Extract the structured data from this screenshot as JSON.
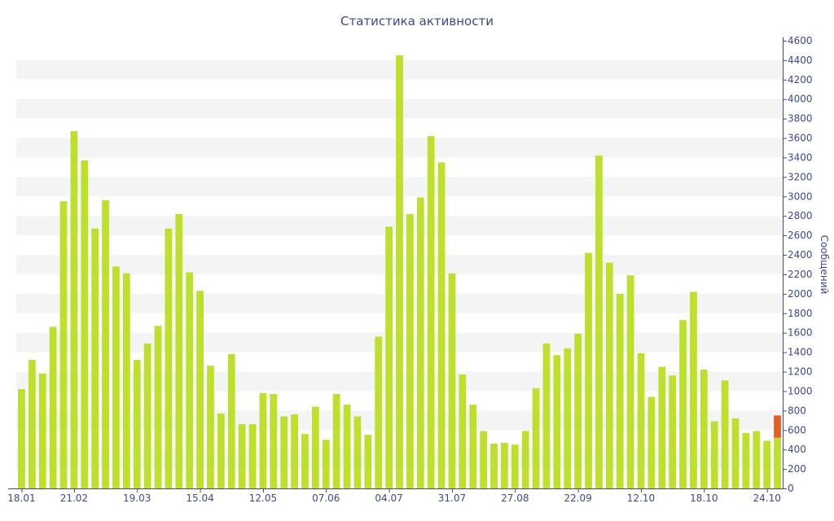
{
  "chart_data": {
    "type": "bar",
    "title": "Статистика активности",
    "xlabel": "",
    "ylabel": "Сообщений",
    "ylim": [
      0,
      4600
    ],
    "y_ticks": [
      0,
      200,
      400,
      600,
      800,
      1000,
      1200,
      1400,
      1600,
      1800,
      2000,
      2200,
      2400,
      2600,
      2800,
      3000,
      3200,
      3400,
      3600,
      3800,
      4000,
      4200,
      4400,
      4600
    ],
    "x_tick_labels": [
      {
        "label": "18.01",
        "index": 0
      },
      {
        "label": "21.02",
        "index": 5
      },
      {
        "label": "19.03",
        "index": 11
      },
      {
        "label": "15.04",
        "index": 17
      },
      {
        "label": "12.05",
        "index": 23
      },
      {
        "label": "07.06",
        "index": 29
      },
      {
        "label": "04.07",
        "index": 35
      },
      {
        "label": "31.07",
        "index": 41
      },
      {
        "label": "27.08",
        "index": 47
      },
      {
        "label": "22.09",
        "index": 53
      },
      {
        "label": "12.10",
        "index": 59
      },
      {
        "label": "18.10",
        "index": 65
      },
      {
        "label": "24.10",
        "index": 71
      }
    ],
    "grid": "alternating horizontal bands",
    "colors": {
      "bar": "#bde02c",
      "highlight": "#e0602a",
      "band": "#f4f4f4",
      "axis": "#3a4a8c"
    },
    "values": [
      1020,
      1320,
      1180,
      1660,
      2950,
      3670,
      3370,
      2670,
      2960,
      2280,
      2210,
      1320,
      1490,
      1670,
      2670,
      2820,
      2220,
      2030,
      1260,
      770,
      1380,
      660,
      660,
      980,
      970,
      740,
      760,
      560,
      840,
      500,
      970,
      860,
      740,
      550,
      1560,
      2690,
      4450,
      2820,
      2990,
      3620,
      3350,
      2210,
      1170,
      860,
      590,
      460,
      470,
      450,
      590,
      1030,
      1490,
      1370,
      1440,
      1590,
      2420,
      3420,
      2320,
      2000,
      2190,
      1390,
      940,
      1250,
      1160,
      1730,
      2020,
      1220,
      690,
      1110,
      720,
      570,
      590,
      490,
      750
    ],
    "highlight": {
      "index": 72,
      "value": 750,
      "note": "current day, upper segment red"
    },
    "highlight_base": 520
  }
}
